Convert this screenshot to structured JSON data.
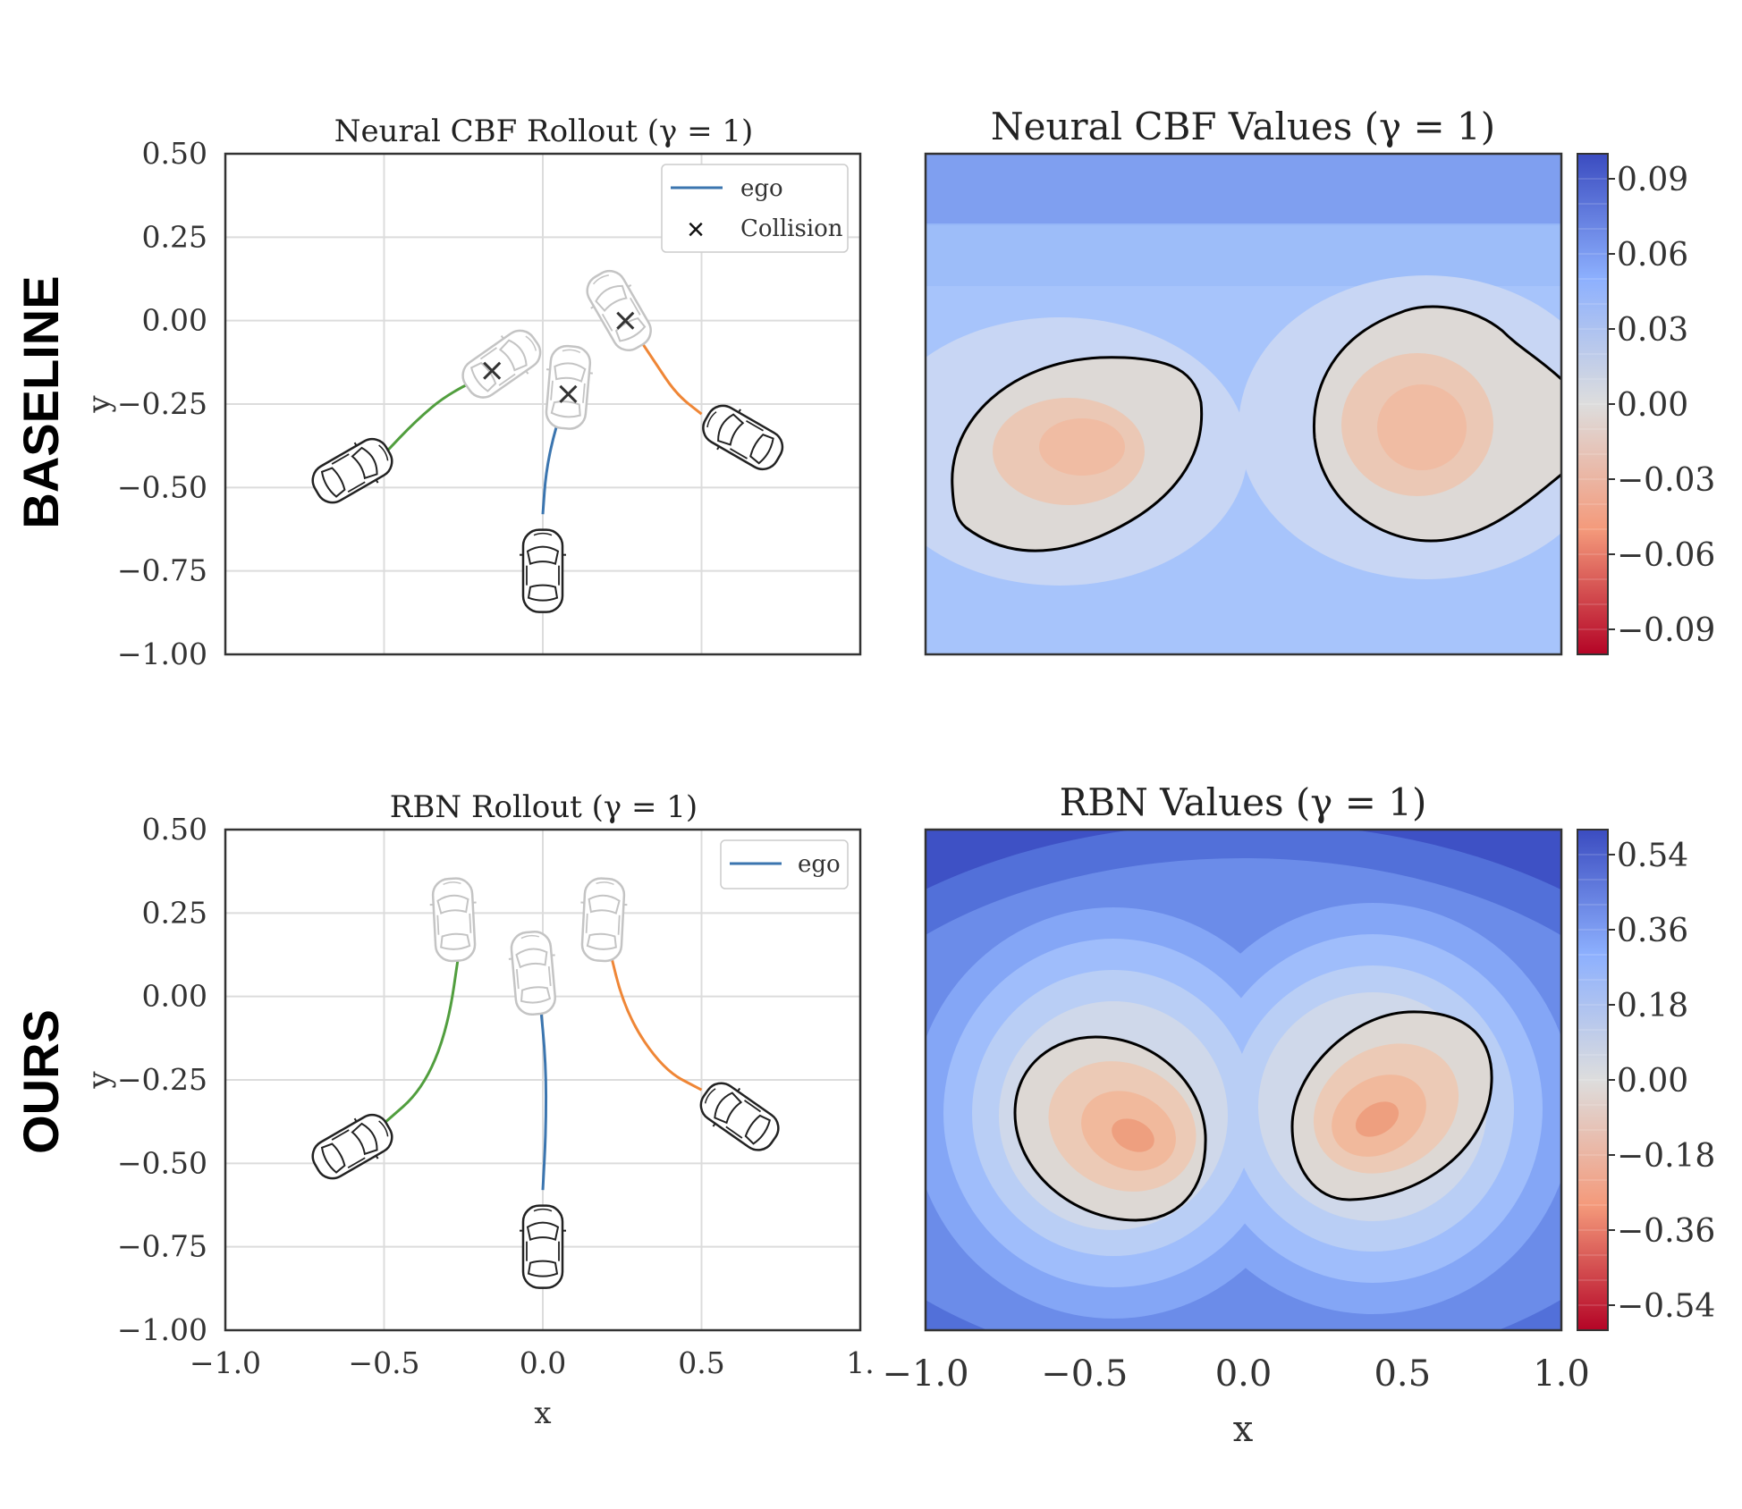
{
  "row_labels": {
    "top": "BASELINE",
    "bottom": "OURS"
  },
  "chart_data": [
    {
      "type": "line",
      "title": "Neural CBF Rollout (γ = 1)",
      "xlabel": "",
      "ylabel": "y",
      "xlim": [
        -1.0,
        1.0
      ],
      "ylim": [
        -1.0,
        0.5
      ],
      "grid": true,
      "x_ticks": [],
      "y_ticks": [
        "0.50",
        "0.25",
        "0.00",
        "−0.25",
        "−0.50",
        "−0.75",
        "−1.00"
      ],
      "y_tick_values": [
        0.5,
        0.25,
        0.0,
        -0.25,
        -0.5,
        -0.75,
        -1.0
      ],
      "legend": {
        "placement": "top-right",
        "entries": [
          "ego",
          "Collision"
        ]
      },
      "series": [
        {
          "name": "ego",
          "color": "#3b75af",
          "x": [
            0.0,
            0.01,
            0.04,
            0.08
          ],
          "y": [
            -0.58,
            -0.45,
            -0.32,
            -0.22
          ]
        },
        {
          "color": "#519e3e",
          "x": [
            -0.5,
            -0.4,
            -0.3,
            -0.15
          ],
          "y": [
            -0.4,
            -0.3,
            -0.22,
            -0.15
          ]
        },
        {
          "color": "#ef8636",
          "x": [
            0.5,
            0.42,
            0.35,
            0.28
          ],
          "y": [
            -0.28,
            -0.22,
            -0.12,
            -0.02
          ]
        }
      ],
      "collisions": {
        "x": [
          -0.16,
          0.08,
          0.26
        ],
        "y": [
          -0.15,
          -0.22,
          0.0
        ]
      },
      "vehicles": [
        {
          "x": 0.0,
          "y": -0.75,
          "heading": 0,
          "faded": false
        },
        {
          "x": -0.6,
          "y": -0.45,
          "heading": 60,
          "faded": false
        },
        {
          "x": 0.63,
          "y": -0.35,
          "heading": -60,
          "faded": false
        },
        {
          "x": 0.08,
          "y": -0.2,
          "heading": 5,
          "faded": true
        },
        {
          "x": -0.13,
          "y": -0.13,
          "heading": 55,
          "faded": true
        },
        {
          "x": 0.24,
          "y": 0.03,
          "heading": -30,
          "faded": true
        }
      ]
    },
    {
      "type": "heatmap",
      "title": "Neural CBF Values (γ = 1)",
      "xlim": [
        -1.0,
        1.0
      ],
      "ylim": [
        -1.0,
        0.5
      ],
      "colorbar": {
        "ticks": [
          "0.09",
          "0.06",
          "0.03",
          "0.00",
          "−0.03",
          "−0.06",
          "−0.09"
        ],
        "values": [
          0.09,
          0.06,
          0.03,
          0.0,
          -0.03,
          -0.06,
          -0.09
        ],
        "range": [
          -0.1,
          0.1
        ],
        "colormap": "coolwarm"
      }
    },
    {
      "type": "line",
      "title": "RBN Rollout (γ = 1)",
      "xlabel": "x",
      "ylabel": "y",
      "xlim": [
        -1.0,
        1.0
      ],
      "ylim": [
        -1.0,
        0.5
      ],
      "grid": true,
      "x_ticks": [
        "−1.0",
        "−0.5",
        "0.0",
        "0.5",
        "1."
      ],
      "x_tick_values": [
        -1.0,
        -0.5,
        0.0,
        0.5,
        1.0
      ],
      "y_ticks": [
        "0.50",
        "0.25",
        "0.00",
        "−0.25",
        "−0.50",
        "−0.75",
        "−1.00"
      ],
      "y_tick_values": [
        0.5,
        0.25,
        0.0,
        -0.25,
        -0.5,
        -0.75,
        -1.0
      ],
      "legend": {
        "placement": "top-right",
        "entries": [
          "ego"
        ]
      },
      "series": [
        {
          "name": "ego",
          "color": "#3b75af",
          "x": [
            0.0,
            0.01,
            0.01,
            -0.01
          ],
          "y": [
            -0.58,
            -0.4,
            -0.2,
            0.0
          ]
        },
        {
          "color": "#519e3e",
          "x": [
            -0.5,
            -0.38,
            -0.3,
            -0.26
          ],
          "y": [
            -0.38,
            -0.28,
            -0.1,
            0.16
          ]
        },
        {
          "color": "#ef8636",
          "x": [
            0.5,
            0.38,
            0.26,
            0.2
          ],
          "y": [
            -0.28,
            -0.22,
            -0.05,
            0.18
          ]
        }
      ],
      "vehicles": [
        {
          "x": 0.0,
          "y": -0.75,
          "heading": 0,
          "faded": false
        },
        {
          "x": -0.6,
          "y": -0.45,
          "heading": 60,
          "faded": false
        },
        {
          "x": 0.62,
          "y": -0.36,
          "heading": -55,
          "faded": false
        },
        {
          "x": -0.03,
          "y": 0.07,
          "heading": -5,
          "faded": true
        },
        {
          "x": -0.28,
          "y": 0.23,
          "heading": -3,
          "faded": true
        },
        {
          "x": 0.19,
          "y": 0.23,
          "heading": 3,
          "faded": true
        }
      ]
    },
    {
      "type": "heatmap",
      "title": "RBN Values (γ = 1)",
      "xlabel": "x",
      "xlim": [
        -1.0,
        1.0
      ],
      "ylim": [
        -1.0,
        0.5
      ],
      "x_ticks": [
        "−1.0",
        "−0.5",
        "0.0",
        "0.5",
        "1.0"
      ],
      "x_tick_values": [
        -1.0,
        -0.5,
        0.0,
        0.5,
        1.0
      ],
      "colorbar": {
        "ticks": [
          "0.54",
          "0.36",
          "0.18",
          "0.00",
          "−0.18",
          "−0.36",
          "−0.54"
        ],
        "values": [
          0.54,
          0.36,
          0.18,
          0.0,
          -0.18,
          -0.36,
          -0.54
        ],
        "range": [
          -0.6,
          0.6
        ],
        "colormap": "coolwarm"
      }
    }
  ]
}
